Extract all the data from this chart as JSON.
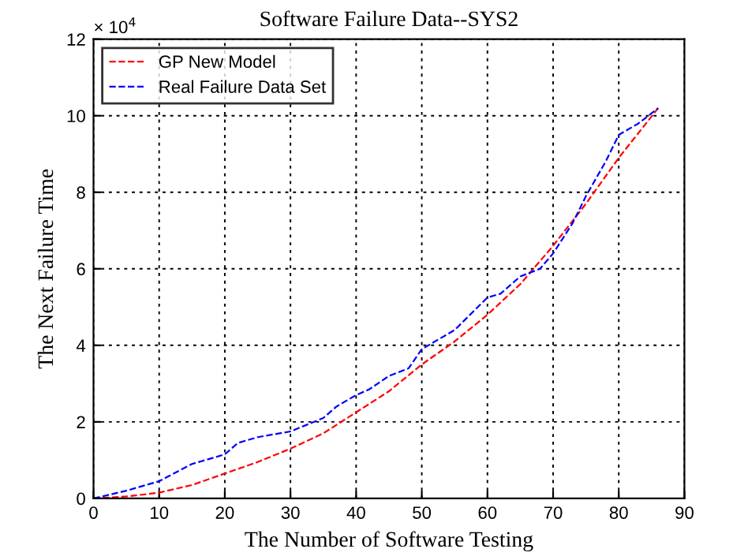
{
  "chart_data": {
    "type": "line",
    "title": "Software Failure Data--SYS2",
    "xlabel": "The Number of Software Testing",
    "ylabel": "The Next Failure Time",
    "annotations": [
      "× 10$^{4}$"
    ],
    "xlim": [
      0,
      90
    ],
    "xticks": [
      0,
      10,
      20,
      30,
      40,
      50,
      60,
      70,
      80,
      90
    ],
    "ylim": [
      0,
      12
    ],
    "yticks": [
      0,
      2,
      4,
      6,
      8,
      10,
      12
    ],
    "grid": true,
    "legend": "top left",
    "line_style": "dashed",
    "marker": "none",
    "series": [
      {
        "name": "GP New Model",
        "color": "#ff0000",
        "x": [
          0,
          5,
          10,
          15,
          20,
          25,
          30,
          35,
          40,
          45,
          50,
          55,
          60,
          65,
          70,
          75,
          80,
          86
        ],
        "values": [
          0,
          0.05,
          0.15,
          0.35,
          0.65,
          0.95,
          1.3,
          1.7,
          2.25,
          2.8,
          3.5,
          4.1,
          4.8,
          5.6,
          6.6,
          7.7,
          8.9,
          10.2
        ]
      },
      {
        "name": "Real Failure Data Set",
        "color": "#0000ff",
        "x": [
          0,
          5,
          10,
          15,
          20,
          22,
          25,
          30,
          35,
          37,
          40,
          42,
          45,
          48,
          50,
          55,
          60,
          62,
          65,
          68,
          70,
          73,
          75,
          78,
          80,
          83,
          86
        ],
        "values": [
          0,
          0.2,
          0.45,
          0.9,
          1.15,
          1.45,
          1.6,
          1.75,
          2.1,
          2.4,
          2.7,
          2.85,
          3.2,
          3.4,
          3.9,
          4.4,
          5.25,
          5.35,
          5.8,
          6.0,
          6.4,
          7.2,
          7.9,
          8.8,
          9.5,
          9.8,
          10.2
        ]
      }
    ]
  }
}
